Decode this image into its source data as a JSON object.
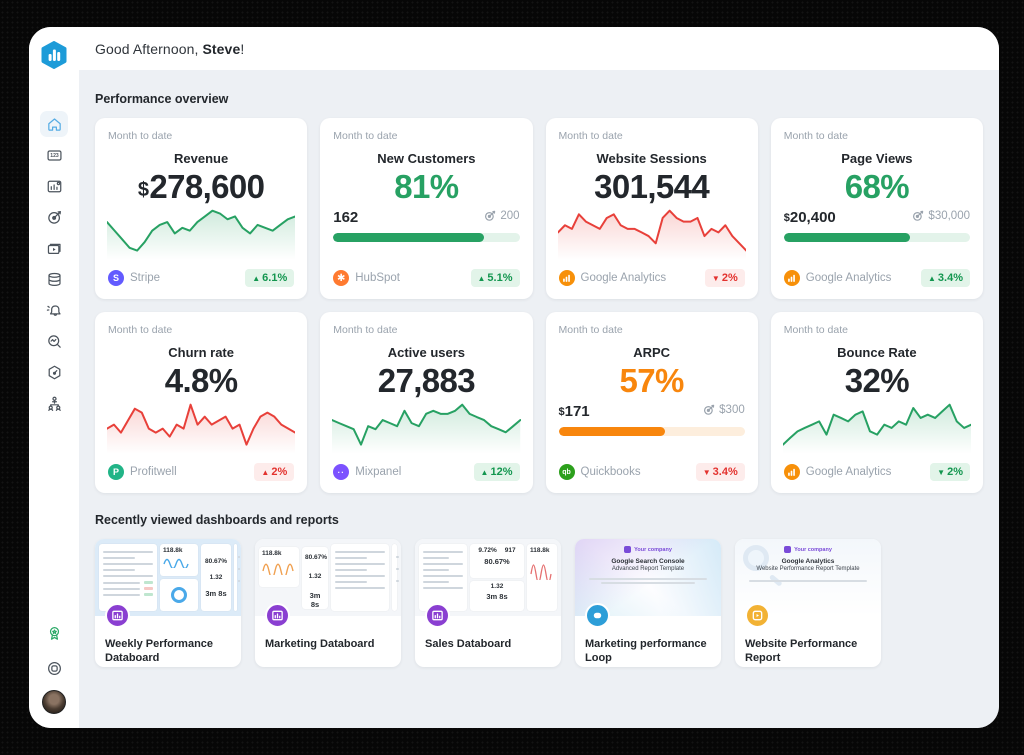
{
  "palette": {
    "green": "#27a163",
    "red": "#e8403a",
    "orange": "#f8860d",
    "brand_blue": "#1d9bd8",
    "sidebar_active": "#56ace4",
    "badge_pos_bg": "#e2f4e9",
    "badge_pos_fg": "#13964f",
    "badge_neg_bg": "#fdeceb",
    "badge_neg_fg": "#e3322e",
    "content_bg": "#edf0f4"
  },
  "header": {
    "greeting_prefix": "Good Afternoon, ",
    "greeting_name": "Steve",
    "greeting_suffix": "!"
  },
  "sidebar": {
    "icons": [
      "home-icon",
      "metrics-icon",
      "databoards-icon",
      "goals-icon",
      "videos-icon",
      "datasets-icon",
      "alerts-icon",
      "query-builder-icon",
      "benchmarks-icon",
      "account-hierarchy-icon"
    ],
    "bottom_icons": [
      "rewards-icon",
      "help-icon",
      "user-avatar"
    ]
  },
  "sections": {
    "performance": "Performance overview",
    "recent": "Recently viewed dashboards and reports"
  },
  "kpi": {
    "cards": [
      {
        "period": "Month to date",
        "title": "Revenue",
        "value_prefix": "$",
        "value": "278,600",
        "spark": {
          "color": "#27a163",
          "points": [
            15,
            12,
            9,
            6,
            5,
            8,
            12,
            14,
            15,
            11,
            13,
            12,
            15,
            17,
            19,
            18,
            16,
            17,
            13,
            11,
            14,
            13,
            12,
            14,
            16,
            17
          ]
        },
        "source": "Stripe",
        "badge": {
          "arrow": "▲",
          "text": "6.1%"
        }
      },
      {
        "period": "Month to date",
        "title": "New Customers",
        "value_prefix": "",
        "value": "81%",
        "progress": {
          "current_prefix": "",
          "current": "162",
          "goal": "200",
          "pct": 81,
          "color": "#27a163",
          "track": "#e3f3ea"
        },
        "source": "HubSpot",
        "badge": {
          "arrow": "▲",
          "text": "5.1%"
        }
      },
      {
        "period": "Month to date",
        "title": "Website Sessions",
        "value_prefix": "",
        "value": "301,544",
        "spark": {
          "color": "#e8403a",
          "points": [
            12,
            14,
            13,
            17,
            15,
            14,
            13,
            16,
            17,
            14,
            13,
            13,
            12,
            11,
            9,
            16,
            18,
            16,
            15,
            15,
            16,
            11,
            13,
            12,
            14,
            11,
            9,
            7
          ]
        },
        "source": "Google Analytics",
        "badge": {
          "arrow": "▼",
          "text": "2%"
        }
      },
      {
        "period": "Month to date",
        "title": "Page Views",
        "value_prefix": "",
        "value": "68%",
        "progress": {
          "current_prefix": "$",
          "current": "20,400",
          "goal": "$30,000",
          "pct": 68,
          "color": "#27a163",
          "track": "#e3f3ea"
        },
        "source": "Google Analytics",
        "badge": {
          "arrow": "▲",
          "text": "3.4%"
        }
      },
      {
        "period": "Month to date",
        "title": "Churn rate",
        "value_prefix": "",
        "value": "4.8%",
        "spark": {
          "color": "#e8403a",
          "points": [
            12,
            13,
            11,
            14,
            17,
            16,
            12,
            11,
            12,
            10,
            13,
            12,
            18,
            13,
            15,
            13,
            14,
            15,
            12,
            13,
            8,
            12,
            15,
            16,
            15,
            13,
            12,
            11
          ]
        },
        "source": "Profitwell",
        "badge": {
          "arrow": "▲",
          "text": "2%"
        }
      },
      {
        "period": "Month to date",
        "title": "Active users",
        "value_prefix": "",
        "value": "27,883",
        "spark": {
          "color": "#27a163",
          "points": [
            13,
            12,
            11,
            10,
            5,
            11,
            10,
            13,
            12,
            11,
            16,
            12,
            11,
            15,
            16,
            15,
            15,
            16,
            18,
            15,
            14,
            13,
            11,
            10,
            9,
            11,
            13
          ]
        },
        "source": "Mixpanel",
        "badge": {
          "arrow": "▲",
          "text": "12%"
        }
      },
      {
        "period": "Month to date",
        "title": "ARPC",
        "value_prefix": "",
        "value": "57%",
        "progress": {
          "current_prefix": "$",
          "current": "171",
          "goal": "$300",
          "pct": 57,
          "color": "#f8860d",
          "track": "#fdeedd"
        },
        "source": "Quickbooks",
        "badge": {
          "arrow": "▼",
          "text": "3.4%"
        }
      },
      {
        "period": "Month to date",
        "title": "Bounce Rate",
        "value_prefix": "",
        "value": "32%",
        "spark": {
          "color": "#27a163",
          "points": [
            5,
            7,
            9,
            10,
            11,
            12,
            8,
            14,
            13,
            12,
            14,
            15,
            9,
            8,
            11,
            10,
            12,
            11,
            16,
            13,
            14,
            13,
            15,
            17,
            12,
            10,
            11
          ]
        },
        "source": "Google Analytics",
        "badge": {
          "arrow": "▼",
          "text": "2%"
        }
      }
    ],
    "source_icons": {
      "stripe_letter": "S",
      "stripe_color": "#635bff",
      "hubspot_glyph": "✱",
      "hubspot_color": "#ff7a30",
      "ga_color": "#f79009",
      "profitwell_letter": "P",
      "profitwell_color": "#21b487",
      "mixpanel_glyph": "··",
      "mixpanel_color": "#7c52ff",
      "quickbooks_letter": "qb",
      "quickbooks_color": "#2ca01c"
    }
  },
  "recent": {
    "items": [
      {
        "title": "Weekly Performance Databoard",
        "badge_color": "#8a3fd1",
        "stats": {
          "big": "118.8k",
          "pct": "80.67%",
          "ratio": "1.32",
          "time": "3m 8s"
        }
      },
      {
        "title": "Marketing Databoard",
        "badge_color": "#8a3fd1",
        "stats": {
          "big": "118.8k",
          "pct": "80.67%",
          "ratio": "1.32",
          "time": "3m 8s"
        }
      },
      {
        "title": "Sales Databoard",
        "badge_color": "#8a3fd1",
        "stats": {
          "p1": "9.72%",
          "p2": "917",
          "pct": "80.67%",
          "big": "118.8k",
          "ratio": "1.32",
          "time": "3m 8s"
        }
      },
      {
        "title": "Marketing performance Loop",
        "badge_color": "#2d9ed8",
        "tpl": {
          "company": "Your company",
          "line1": "Google Search Console",
          "line2": "Advanced Report Template"
        }
      },
      {
        "title": "Website Performance Report",
        "badge_color": "#f2b234",
        "tpl": {
          "company": "Your company",
          "line1": "Google Analytics",
          "line2": "Website Performance Report Template"
        }
      }
    ]
  }
}
